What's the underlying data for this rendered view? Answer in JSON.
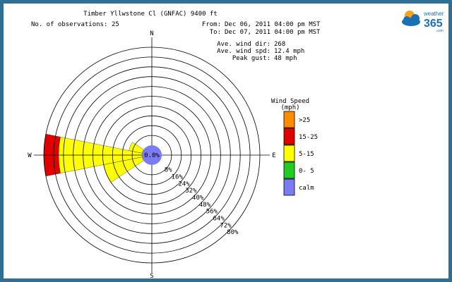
{
  "chart_data": {
    "type": "wind-rose",
    "title": "Timber Yllwstone Cl (GNFAC) 9400 ft",
    "observations": {
      "label": "No. of observations:",
      "value": 25
    },
    "period": {
      "from_label": "From:",
      "from": "Dec 06, 2011 04:00 pm MST",
      "to_label": "To:",
      "to": "Dec 07, 2011 04:00 pm MST"
    },
    "stats": [
      {
        "label": "Ave. wind dir:",
        "value": "268"
      },
      {
        "label": "Ave. wind spd:",
        "value": "12.4 mph"
      },
      {
        "label": "Peak gust:",
        "value": "48 mph"
      }
    ],
    "directions": {
      "n": "N",
      "e": "E",
      "s": "S",
      "w": "W"
    },
    "calm_percent": "0.0%",
    "radial_ticks": [
      8,
      16,
      24,
      32,
      40,
      48,
      56,
      64,
      72,
      80
    ],
    "radial_tick_labels": [
      "8%",
      "16%",
      "24%",
      "32%",
      "40%",
      "48%",
      "56%",
      "64%",
      "72%",
      "80%"
    ],
    "rmax": 80,
    "petals": [
      {
        "direction_deg": 270,
        "bins": [
          {
            "bin": "5-15",
            "percent": 68
          },
          {
            "bin": "15-25",
            "percent": 80
          }
        ]
      },
      {
        "direction_deg": 247.5,
        "bins": [
          {
            "bin": "5-15",
            "percent": 32
          }
        ]
      },
      {
        "direction_deg": 292.5,
        "bins": [
          {
            "bin": "5-15",
            "percent": 11
          }
        ]
      }
    ],
    "legend": {
      "title": "Wind Speed",
      "units": "(mph)",
      "bins": [
        {
          "label": ">25",
          "color": "#ff8c00"
        },
        {
          "label": "15-25",
          "color": "#e00000"
        },
        {
          "label": "5-15",
          "color": "#ffff00"
        },
        {
          "label": "0- 5",
          "color": "#22cc22"
        },
        {
          "label": "calm",
          "color": "#7b7bf2"
        }
      ]
    }
  },
  "logo": {
    "line1": "weather",
    "line2": "365",
    "line3": ".com"
  },
  "colors": {
    "frame": "#2f6f93",
    "grid": "#000000",
    "logo_blue": "#1a6fb5",
    "logo_orange": "#f3a21b"
  }
}
